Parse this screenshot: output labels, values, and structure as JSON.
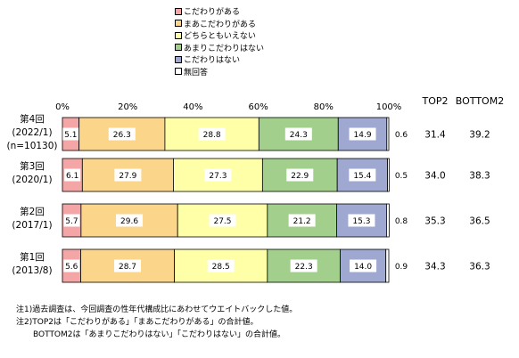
{
  "chart_data": {
    "type": "bar",
    "orientation": "horizontal",
    "stacked": true,
    "percent_stacked": true,
    "categories": [
      {
        "line1": "第4回",
        "line2": "(2022/1)",
        "line3": "(n=10130)"
      },
      {
        "line1": "第3回",
        "line2": "(2020/1)",
        "line3": ""
      },
      {
        "line1": "第2回",
        "line2": "(2017/1)",
        "line3": ""
      },
      {
        "line1": "第1回",
        "line2": "(2013/8)",
        "line3": ""
      }
    ],
    "series": [
      {
        "name": "こだわりがある",
        "color": "#f4a6a6",
        "values": [
          5.1,
          6.1,
          5.7,
          5.6
        ]
      },
      {
        "name": "まあこだわりがある",
        "color": "#fbd68a",
        "values": [
          26.3,
          27.9,
          29.6,
          28.7
        ]
      },
      {
        "name": "どちらともいえない",
        "color": "#ffffa8",
        "values": [
          28.8,
          27.3,
          27.5,
          28.5
        ]
      },
      {
        "name": "あまりこだわりはない",
        "color": "#a3cf8c",
        "values": [
          24.3,
          22.9,
          21.2,
          22.3
        ]
      },
      {
        "name": "こだわりはない",
        "color": "#9ea8d0",
        "values": [
          14.9,
          15.4,
          15.3,
          14.0
        ]
      },
      {
        "name": "無回答",
        "color": "#ffffff",
        "values": [
          0.6,
          0.5,
          0.8,
          0.9
        ]
      }
    ],
    "x_ticks": [
      "0%",
      "20%",
      "40%",
      "60%",
      "80%",
      "100%"
    ],
    "xlim": [
      0,
      100
    ],
    "grid": false,
    "legend_position": "top-center",
    "extra_columns": [
      {
        "header": "TOP2",
        "values": [
          "31.4",
          "34.0",
          "35.3",
          "34.3"
        ]
      },
      {
        "header": "BOTTOM2",
        "values": [
          "39.2",
          "38.3",
          "36.5",
          "36.3"
        ]
      }
    ]
  },
  "notes": [
    "注1)過去調査は、今回調査の性年代構成比にあわせてウエイトバックした値。",
    "注2)TOP2は「こだわりがある」「まあこだわりがある」の合計値。",
    "BOTTOM2は「あまりこだわりはない」「こだわりはない」の合計値。"
  ]
}
